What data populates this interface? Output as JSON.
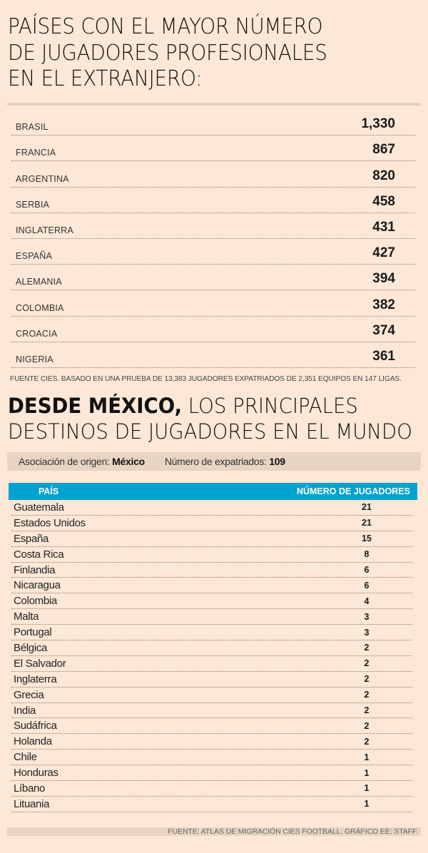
{
  "top_section": {
    "title_lines": [
      "PAÍSES CON EL MAYOR NÚMERO",
      "DE JUGADORES PROFESIONALES",
      "EN EL EXTRANJERO:"
    ],
    "rows": [
      {
        "country": "BRASIL",
        "value": "1,330"
      },
      {
        "country": "FRANCIA",
        "value": "867"
      },
      {
        "country": "ARGENTINA",
        "value": "820"
      },
      {
        "country": "SERBIA",
        "value": "458"
      },
      {
        "country": "INGLATERRA",
        "value": "431"
      },
      {
        "country": "ESPAÑA",
        "value": "427"
      },
      {
        "country": "ALEMANIA",
        "value": "394"
      },
      {
        "country": "COLOMBIA",
        "value": "382"
      },
      {
        "country": "CROACIA",
        "value": "374"
      },
      {
        "country": "NIGERIA",
        "value": "361"
      }
    ],
    "source": "FUENTE CIES. BASADO EN UNA PRUEBA DE 13,383 JUGADORES EXPATRIADOS DE 2,351 EQUIPOS EN 147 LIGAS."
  },
  "mexico_section": {
    "title_bold": "DESDE MÉXICO,",
    "title_rest": " LOS PRINCIPALES",
    "title_line2": "DESTINOS DE JUGADORES EN EL MUNDO",
    "origin_label": "Asociación de origen:",
    "origin_value": "México",
    "expat_label": "Número de expatriados:",
    "expat_value": "109",
    "header_country": "PAÍS",
    "header_count": "NÚMERO DE JUGADORES",
    "header_color": "#00a3d0",
    "rows": [
      {
        "country": "Guatemala",
        "value": "21"
      },
      {
        "country": "Estados Unidos",
        "value": "21"
      },
      {
        "country": "España",
        "value": "15"
      },
      {
        "country": "Costa Rica",
        "value": "8"
      },
      {
        "country": "Finlandia",
        "value": "6"
      },
      {
        "country": "Nicaragua",
        "value": "6"
      },
      {
        "country": "Colombia",
        "value": "4"
      },
      {
        "country": "Malta",
        "value": "3"
      },
      {
        "country": "Portugal",
        "value": "3"
      },
      {
        "country": "Bélgica",
        "value": "2"
      },
      {
        "country": "El Salvador",
        "value": "2"
      },
      {
        "country": "Inglaterra",
        "value": "2"
      },
      {
        "country": "Grecia",
        "value": "2"
      },
      {
        "country": "India",
        "value": "2"
      },
      {
        "country": "Sudáfrica",
        "value": "2"
      },
      {
        "country": "Holanda",
        "value": "2"
      },
      {
        "country": "Chile",
        "value": "1"
      },
      {
        "country": "Honduras",
        "value": "1"
      },
      {
        "country": "Líbano",
        "value": "1"
      },
      {
        "country": "Lituania",
        "value": "1"
      }
    ],
    "source": "FUENTE: ATLAS DE MIGRACIÓN CIES FOOTBALL. GRÁFICO EE: STAFF."
  }
}
